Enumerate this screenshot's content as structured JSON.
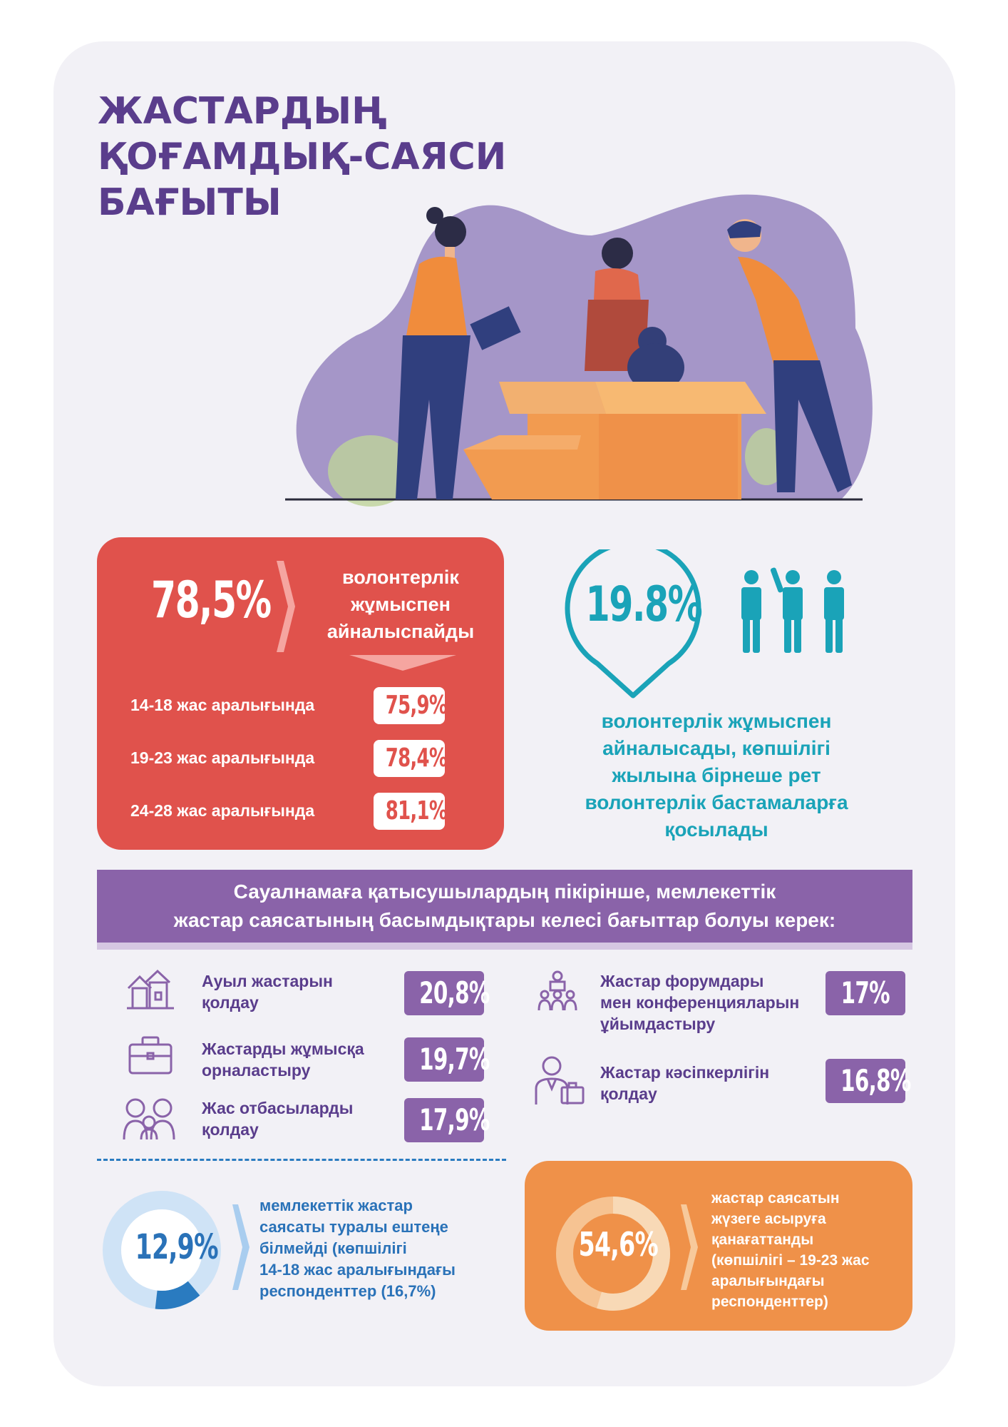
{
  "title": {
    "lines": [
      "ЖАСТАРДЫҢ",
      "ҚОҒАМДЫҚ-САЯСИ",
      "БАҒЫТЫ"
    ]
  },
  "volunteer_not": {
    "percent": "78,5%",
    "label_lines": [
      "волонтерлік",
      "жұмыспен",
      "айналыспайды"
    ],
    "age_groups": [
      {
        "label": "14-18 жас аралығында",
        "value": "75,9%"
      },
      {
        "label": "19-23 жас аралығында",
        "value": "78,4%"
      },
      {
        "label": "24-28 жас аралығында",
        "value": "81,1%"
      }
    ]
  },
  "volunteer_yes": {
    "percent": "19.8%",
    "desc_lines": [
      "волонтерлік жұмыспен",
      "айналысады, көпшілігі",
      "жылына бірнеше рет",
      "волонтерлік бастамаларға",
      "қосылады"
    ]
  },
  "priorities": {
    "header_lines": [
      "Сауалнамаға қатысушылардың пікірінше, мемлекеттік",
      "жастар саясатының басымдықтары келесі бағыттар болуы керек:"
    ],
    "left": [
      {
        "icon": "village-house-icon",
        "lines": [
          "Ауыл жастарын",
          "қолдау"
        ],
        "value": "20,8%"
      },
      {
        "icon": "briefcase-icon",
        "lines": [
          "Жастарды жұмысқа",
          "орналастыру"
        ],
        "value": "19,7%"
      },
      {
        "icon": "family-icon",
        "lines": [
          "Жас отбасыларды",
          "қолдау"
        ],
        "value": "17,9%"
      }
    ],
    "right": [
      {
        "icon": "conference-icon",
        "lines": [
          "Жастар форумдары",
          "мен конференцияларын",
          "ұйымдастыру"
        ],
        "value": "17%"
      },
      {
        "icon": "businessman-icon",
        "lines": [
          "Жастар кәсіпкерлігін",
          "қолдау"
        ],
        "value": "16,8%"
      }
    ]
  },
  "unaware": {
    "percent": "12,9%",
    "fraction": 0.129,
    "desc_lines": [
      "мемлекеттік жастар",
      "саясаты туралы ештеңе",
      "білмейді (көпшілігі",
      "14-18 жас аралығындағы",
      "респонденттер (16,7%)"
    ]
  },
  "satisfied": {
    "percent": "54,6%",
    "fraction": 0.546,
    "desc_lines": [
      "жастар саясатын",
      "жүзеге асыруға",
      "қанағаттанды",
      "(көпшілігі – 19-23 жас",
      "аралығындағы",
      "респонденттер)"
    ]
  },
  "colors": {
    "purple": "#8a63a9",
    "dark_purple": "#5a3d8c",
    "red": "#e0524c",
    "teal": "#1aa3b8",
    "blue": "#2a72b8",
    "orange": "#ef9149"
  }
}
